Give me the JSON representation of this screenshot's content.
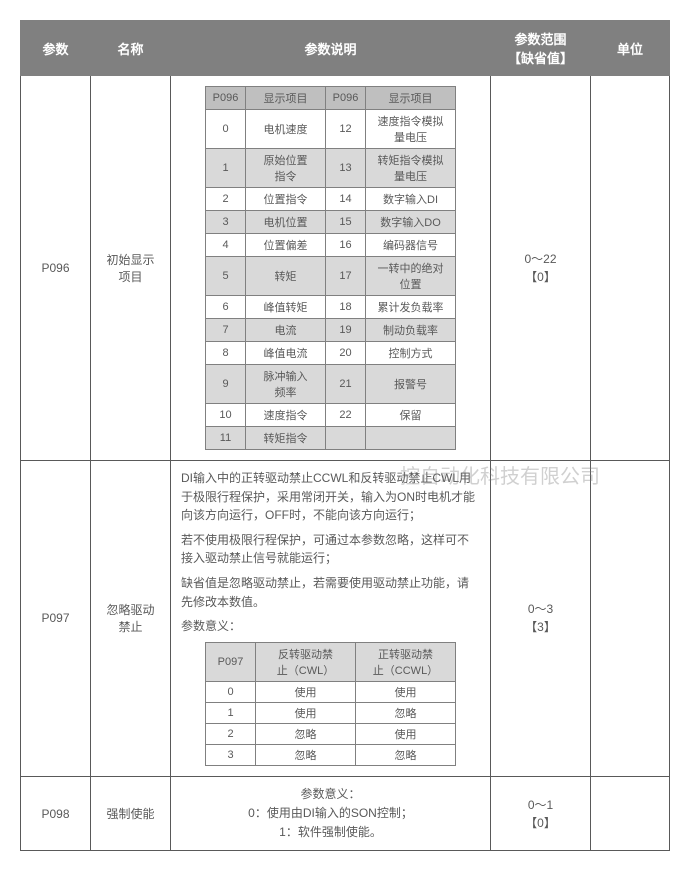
{
  "header": {
    "param": "参数",
    "name": "名称",
    "desc": "参数说明",
    "range": "参数范围\n【缺省值】",
    "unit": "单位"
  },
  "watermark": "控自动化科技有限公司",
  "rows": {
    "p096": {
      "param": "P096",
      "name": "初始显示\n项目",
      "range_line1": "0～22",
      "range_line2": "【0】",
      "unit": "",
      "innerHeader": {
        "codeA": "P096",
        "itemA": "显示项目",
        "codeB": "P096",
        "itemB": "显示项目"
      },
      "items": [
        {
          "a_code": "0",
          "a_item": "电机速度",
          "b_code": "12",
          "b_item": "速度指令模拟\n量电压",
          "shade": false
        },
        {
          "a_code": "1",
          "a_item": "原始位置\n指令",
          "b_code": "13",
          "b_item": "转矩指令模拟\n量电压",
          "shade": true
        },
        {
          "a_code": "2",
          "a_item": "位置指令",
          "b_code": "14",
          "b_item": "数字输入DI",
          "shade": false
        },
        {
          "a_code": "3",
          "a_item": "电机位置",
          "b_code": "15",
          "b_item": "数字输入DO",
          "shade": true
        },
        {
          "a_code": "4",
          "a_item": "位置偏差",
          "b_code": "16",
          "b_item": "编码器信号",
          "shade": false
        },
        {
          "a_code": "5",
          "a_item": "转矩",
          "b_code": "17",
          "b_item": "一转中的绝对\n位置",
          "shade": true
        },
        {
          "a_code": "6",
          "a_item": "峰值转矩",
          "b_code": "18",
          "b_item": "累计发负载率",
          "shade": false
        },
        {
          "a_code": "7",
          "a_item": "电流",
          "b_code": "19",
          "b_item": "制动负载率",
          "shade": true
        },
        {
          "a_code": "8",
          "a_item": "峰值电流",
          "b_code": "20",
          "b_item": "控制方式",
          "shade": false
        },
        {
          "a_code": "9",
          "a_item": "脉冲输入\n频率",
          "b_code": "21",
          "b_item": "报警号",
          "shade": true
        },
        {
          "a_code": "10",
          "a_item": "速度指令",
          "b_code": "22",
          "b_item": "保留",
          "shade": false
        },
        {
          "a_code": "11",
          "a_item": "转矩指令",
          "b_code": "",
          "b_item": "",
          "shade": true,
          "emptyRight": true
        }
      ]
    },
    "p097": {
      "param": "P097",
      "name": "忽略驱动\n禁止",
      "range_line1": "0～3",
      "range_line2": "【3】",
      "unit": "",
      "text1": "DI输入中的正转驱动禁止CCWL和反转驱动禁止CWL用于极限行程保护，采用常闭开关，输入为ON时电机才能向该方向运行，OFF时，不能向该方向运行；",
      "text2": "若不使用极限行程保护，可通过本参数忽略，这样可不接入驱动禁止信号就能运行；",
      "text3": "缺省值是忽略驱动禁止，若需要使用驱动禁止功能，请先修改本数值。",
      "text4": "参数意义：",
      "innerHeader": {
        "code": "P097",
        "cwl": "反转驱动禁\n止（CWL）",
        "ccwl": "正转驱动禁\n止（CCWL）"
      },
      "options": [
        {
          "code": "0",
          "cwl": "使用",
          "ccwl": "使用"
        },
        {
          "code": "1",
          "cwl": "使用",
          "ccwl": "忽略"
        },
        {
          "code": "2",
          "cwl": "忽略",
          "ccwl": "使用"
        },
        {
          "code": "3",
          "cwl": "忽略",
          "ccwl": "忽略"
        }
      ]
    },
    "p098": {
      "param": "P098",
      "name": "强制使能",
      "range_line1": "0～1",
      "range_line2": "【0】",
      "unit": "",
      "line1": "参数意义：",
      "line2": "0：使用由DI输入的SON控制；",
      "line3": "1：软件强制使能。"
    }
  }
}
